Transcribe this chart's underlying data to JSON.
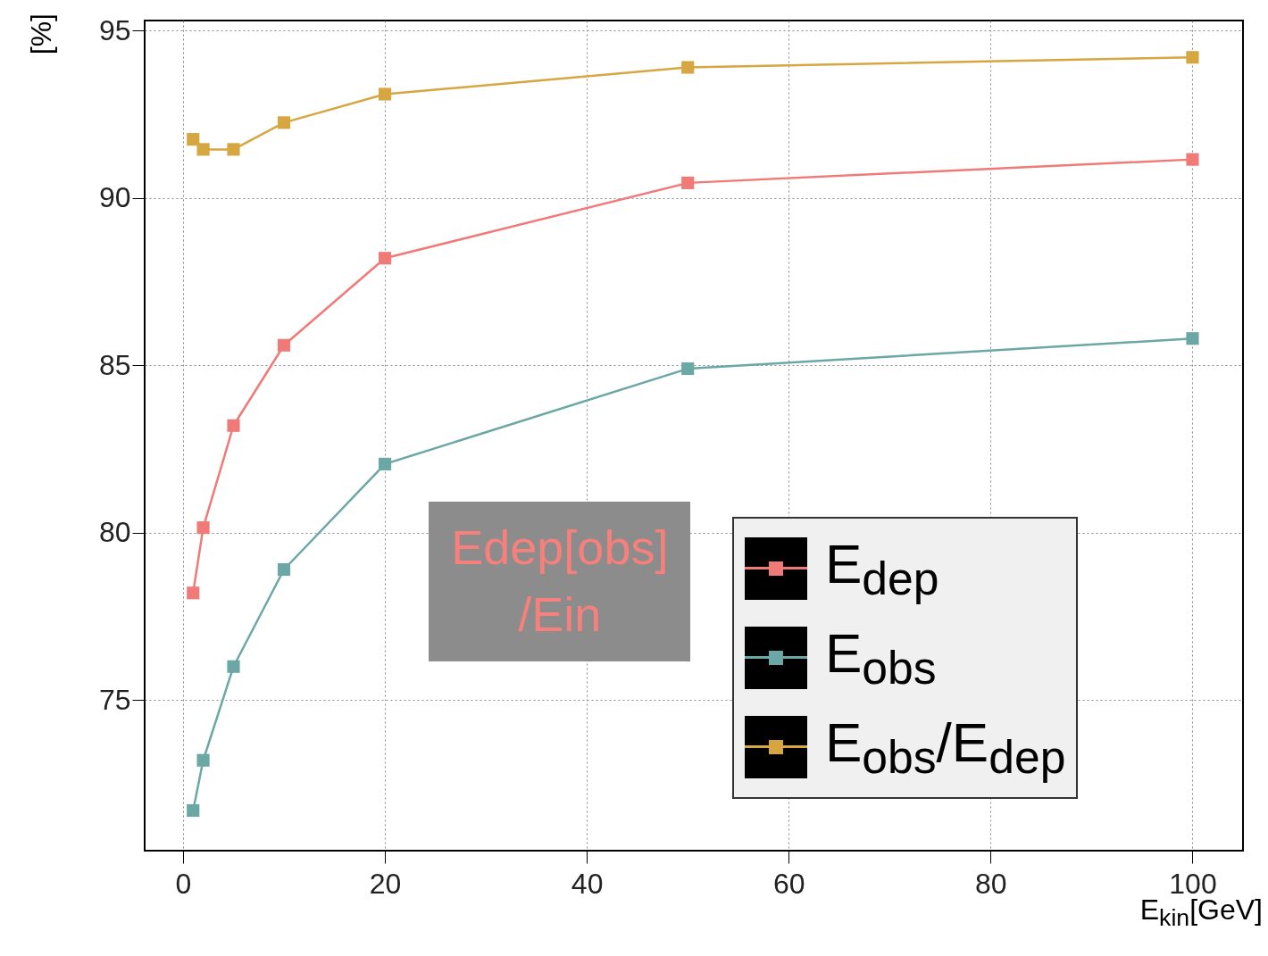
{
  "chart_data": {
    "type": "line",
    "xlabel": "E$_{kin}$[GeV]",
    "ylabel": "[%]",
    "xlim": [
      -3.8,
      105
    ],
    "ylim": [
      70.5,
      95.3
    ],
    "xticks": [
      0,
      20,
      40,
      60,
      80,
      100
    ],
    "yticks": [
      75,
      80,
      85,
      90,
      95
    ],
    "grid": true,
    "marker": "square",
    "line_style": "solid",
    "legend": "bottom right",
    "x": [
      1,
      2,
      5,
      10,
      20,
      50,
      100
    ],
    "series": [
      {
        "name": "E$_{dep}$",
        "color": "#f07a78",
        "values": [
          78.2,
          80.15,
          83.2,
          85.6,
          88.2,
          90.45,
          91.15
        ]
      },
      {
        "name": "E$_{obs}$",
        "color": "#6aa7a5",
        "values": [
          71.7,
          73.2,
          76.0,
          78.9,
          82.05,
          84.9,
          85.8
        ]
      },
      {
        "name": "E$_{obs}$/E$_{dep}$",
        "color": "#d6a640",
        "values": [
          91.75,
          91.45,
          91.45,
          92.25,
          93.1,
          93.9,
          94.2
        ]
      }
    ],
    "annotations": [
      "Edep[obs]\n/Ein"
    ]
  }
}
